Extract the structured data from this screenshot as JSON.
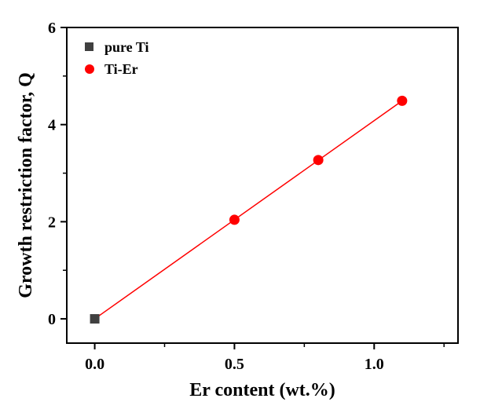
{
  "chart_data": {
    "type": "scatter",
    "xlabel": "Er content (wt.%)",
    "ylabel": "Growth restriction factor, Q",
    "xlim": [
      -0.1,
      1.3
    ],
    "ylim": [
      -0.5,
      6
    ],
    "x_ticks": [
      0.0,
      0.5,
      1.0
    ],
    "x_tick_labels": [
      "0.0",
      "0.5",
      "1.0"
    ],
    "y_ticks": [
      0,
      2,
      4,
      6
    ],
    "y_tick_labels": [
      "0",
      "2",
      "4",
      "6"
    ],
    "grid": false,
    "legend_position": "top-left",
    "series": [
      {
        "name": "pure Ti",
        "marker": "square",
        "color": "#404040",
        "x": [
          0.0
        ],
        "y": [
          0.0
        ]
      },
      {
        "name": "Ti-Er",
        "marker": "circle",
        "color": "#ff0000",
        "x": [
          0.5,
          0.8,
          1.1
        ],
        "y": [
          2.04,
          3.27,
          4.49
        ]
      }
    ],
    "fit_line": {
      "color": "#ff0000",
      "x": [
        0.0,
        1.1
      ],
      "y": [
        0.0,
        4.49
      ]
    }
  }
}
